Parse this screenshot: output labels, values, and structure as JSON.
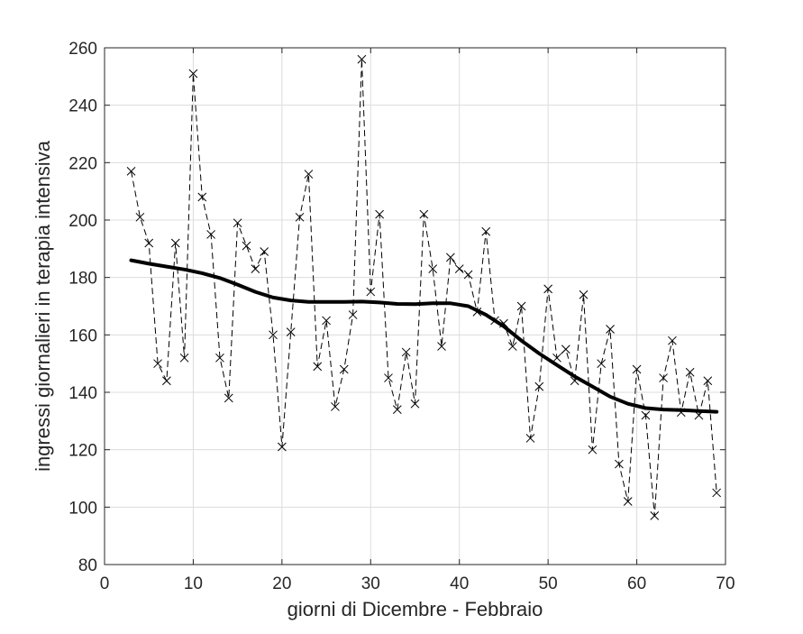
{
  "chart_data": {
    "type": "line",
    "title": "",
    "xlabel": "giorni di Dicembre - Febbraio",
    "ylabel": "ingressi giornalieri in terapia intensiva",
    "xlim": [
      0,
      70
    ],
    "ylim": [
      80,
      260
    ],
    "xticks": [
      0,
      10,
      20,
      30,
      40,
      50,
      60,
      70
    ],
    "yticks": [
      80,
      100,
      120,
      140,
      160,
      180,
      200,
      220,
      240,
      260
    ],
    "grid": true,
    "legend": "none",
    "series": [
      {
        "style": "dashed-with-x-markers",
        "color": "#000000",
        "x": [
          3,
          4,
          5,
          6,
          7,
          8,
          9,
          10,
          11,
          12,
          13,
          14,
          15,
          16,
          17,
          18,
          19,
          20,
          21,
          22,
          23,
          24,
          25,
          26,
          27,
          28,
          29,
          30,
          31,
          32,
          33,
          34,
          35,
          36,
          37,
          38,
          39,
          40,
          41,
          42,
          43,
          44,
          45,
          46,
          47,
          48,
          49,
          50,
          51,
          52,
          53,
          54,
          55,
          56,
          57,
          58,
          59,
          60,
          61,
          62,
          63,
          64,
          65,
          66,
          67,
          68,
          69
        ],
        "values": [
          217,
          201,
          192,
          150,
          144,
          192,
          152,
          251,
          208,
          195,
          152,
          138,
          199,
          191,
          183,
          189,
          160,
          121,
          161,
          201,
          216,
          149,
          165,
          135,
          148,
          167,
          256,
          175,
          202,
          145,
          134,
          154,
          136,
          202,
          183,
          156,
          187,
          183,
          181,
          168,
          196,
          165,
          164,
          156,
          170,
          124,
          142,
          176,
          152,
          155,
          144,
          174,
          120,
          150,
          162,
          115,
          102,
          148,
          132,
          97,
          145,
          158,
          133,
          147,
          132,
          144,
          105
        ]
      },
      {
        "style": "solid-thick",
        "color": "#000000",
        "x": [
          3,
          5,
          7,
          9,
          11,
          13,
          15,
          17,
          19,
          21,
          23,
          25,
          27,
          29,
          31,
          33,
          35,
          37,
          39,
          41,
          43,
          45,
          47,
          49,
          51,
          53,
          55,
          57,
          59,
          61,
          63,
          65,
          67,
          69
        ],
        "values": [
          186,
          184.8,
          183.8,
          182.8,
          181.5,
          179.8,
          177.5,
          175,
          173,
          172,
          171.5,
          171.5,
          171.5,
          171.6,
          171.3,
          170.8,
          170.7,
          171,
          171,
          170,
          167,
          163,
          158,
          153.5,
          149.5,
          145.5,
          142,
          138.5,
          136,
          134.5,
          134,
          133.8,
          133.5,
          133.2
        ]
      }
    ]
  }
}
